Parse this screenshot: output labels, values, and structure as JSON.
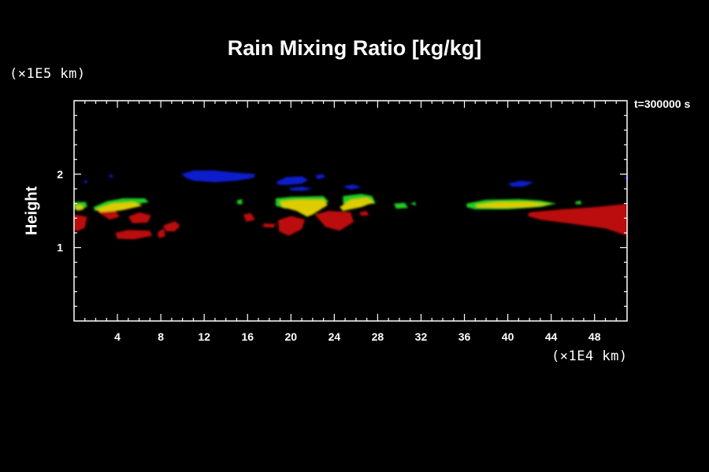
{
  "chart_data": {
    "type": "heatmap",
    "title": "Rain Mixing Ratio [kg/kg]",
    "ylabel": "Height",
    "xunit": "(×1E4 km)",
    "yunit": "(×1E5 km)",
    "time_label": "t=300000 s",
    "xlim": [
      0,
      51
    ],
    "ylim": [
      0,
      3
    ],
    "xticks": [
      4,
      8,
      12,
      16,
      20,
      24,
      28,
      32,
      36,
      40,
      44,
      48
    ],
    "yticks": [
      1,
      2
    ],
    "colors": {
      "low": "#0a1ecc",
      "mid": "#22cc22",
      "high": "#ddcc00",
      "peak": "#bb0a0a"
    },
    "regions": [
      {
        "level": "low",
        "points": [
          [
            9.9,
            2.0
          ],
          [
            11,
            2.05
          ],
          [
            13,
            2.05
          ],
          [
            15,
            2.02
          ],
          [
            16.7,
            2.0
          ],
          [
            16.6,
            1.95
          ],
          [
            15,
            1.91
          ],
          [
            13,
            1.89
          ],
          [
            11,
            1.91
          ],
          [
            10.3,
            1.95
          ]
        ]
      },
      {
        "level": "low",
        "points": [
          [
            18.7,
            1.9
          ],
          [
            19.6,
            1.96
          ],
          [
            21,
            1.97
          ],
          [
            21.6,
            1.92
          ],
          [
            21,
            1.87
          ],
          [
            19.5,
            1.85
          ],
          [
            18.7,
            1.86
          ]
        ]
      },
      {
        "level": "low",
        "points": [
          [
            19.8,
            1.81
          ],
          [
            21,
            1.83
          ],
          [
            22,
            1.8
          ],
          [
            21,
            1.77
          ],
          [
            20,
            1.78
          ]
        ]
      },
      {
        "level": "low",
        "points": [
          [
            22.2,
            1.98
          ],
          [
            22.9,
            2.0
          ],
          [
            23.2,
            1.96
          ],
          [
            22.5,
            1.93
          ]
        ]
      },
      {
        "level": "low",
        "points": [
          [
            24.8,
            1.83
          ],
          [
            25.7,
            1.86
          ],
          [
            26.5,
            1.82
          ],
          [
            25.5,
            1.79
          ]
        ]
      },
      {
        "level": "low",
        "points": [
          [
            40.0,
            1.87
          ],
          [
            41.2,
            1.91
          ],
          [
            42.4,
            1.89
          ],
          [
            41.5,
            1.83
          ],
          [
            40.4,
            1.83
          ]
        ]
      },
      {
        "level": "low",
        "points": [
          [
            0.8,
            1.9
          ],
          [
            1.2,
            1.92
          ],
          [
            1.2,
            1.87
          ]
        ]
      },
      {
        "level": "low",
        "points": [
          [
            3.1,
            1.97
          ],
          [
            3.5,
            2.0
          ],
          [
            3.6,
            1.95
          ]
        ]
      },
      {
        "level": "low",
        "points": [
          [
            50.7,
            1.95
          ],
          [
            51,
            1.97
          ],
          [
            51,
            1.91
          ]
        ]
      },
      {
        "level": "mid",
        "points": [
          [
            0,
            1.62
          ],
          [
            1.1,
            1.62
          ],
          [
            1.2,
            1.55
          ],
          [
            0.3,
            1.51
          ],
          [
            0,
            1.52
          ]
        ]
      },
      {
        "level": "mid",
        "points": [
          [
            1.8,
            1.55
          ],
          [
            3,
            1.63
          ],
          [
            4.5,
            1.67
          ],
          [
            6.5,
            1.67
          ],
          [
            6.9,
            1.62
          ],
          [
            5.5,
            1.58
          ],
          [
            3,
            1.52
          ],
          [
            1.9,
            1.5
          ]
        ]
      },
      {
        "level": "mid",
        "points": [
          [
            15.0,
            1.64
          ],
          [
            15.5,
            1.66
          ],
          [
            15.5,
            1.59
          ],
          [
            15.1,
            1.59
          ]
        ]
      },
      {
        "level": "mid",
        "points": [
          [
            18.6,
            1.67
          ],
          [
            20,
            1.69
          ],
          [
            23,
            1.7
          ],
          [
            23.5,
            1.62
          ],
          [
            21.5,
            1.55
          ],
          [
            19.5,
            1.53
          ],
          [
            18.6,
            1.57
          ]
        ]
      },
      {
        "level": "mid",
        "points": [
          [
            24.8,
            1.7
          ],
          [
            26.5,
            1.73
          ],
          [
            27.5,
            1.7
          ],
          [
            27.8,
            1.6
          ],
          [
            26.3,
            1.58
          ],
          [
            24.8,
            1.6
          ]
        ]
      },
      {
        "level": "mid",
        "points": [
          [
            29.5,
            1.6
          ],
          [
            30.5,
            1.61
          ],
          [
            30.8,
            1.54
          ],
          [
            29.7,
            1.53
          ]
        ]
      },
      {
        "level": "mid",
        "points": [
          [
            31.0,
            1.6
          ],
          [
            31.5,
            1.62
          ],
          [
            31.5,
            1.57
          ]
        ]
      },
      {
        "level": "mid",
        "points": [
          [
            36.2,
            1.6
          ],
          [
            38,
            1.65
          ],
          [
            41,
            1.66
          ],
          [
            43,
            1.64
          ],
          [
            44.5,
            1.6
          ],
          [
            43,
            1.55
          ],
          [
            40,
            1.52
          ],
          [
            37,
            1.52
          ],
          [
            36.2,
            1.55
          ]
        ]
      },
      {
        "level": "mid",
        "points": [
          [
            46.2,
            1.62
          ],
          [
            46.7,
            1.64
          ],
          [
            46.8,
            1.59
          ],
          [
            46.3,
            1.59
          ]
        ]
      },
      {
        "level": "high",
        "points": [
          [
            0.1,
            1.57
          ],
          [
            0.7,
            1.58
          ],
          [
            0.9,
            1.52
          ],
          [
            0.3,
            1.5
          ]
        ]
      },
      {
        "level": "high",
        "points": [
          [
            2.0,
            1.52
          ],
          [
            3.5,
            1.6
          ],
          [
            5.5,
            1.62
          ],
          [
            6.3,
            1.57
          ],
          [
            4.5,
            1.51
          ],
          [
            2.5,
            1.47
          ]
        ]
      },
      {
        "level": "high",
        "points": [
          [
            19,
            1.63
          ],
          [
            20.5,
            1.65
          ],
          [
            23,
            1.65
          ],
          [
            23.4,
            1.58
          ],
          [
            22,
            1.45
          ],
          [
            21.5,
            1.42
          ],
          [
            20.5,
            1.5
          ],
          [
            19.2,
            1.55
          ]
        ]
      },
      {
        "level": "high",
        "points": [
          [
            24.5,
            1.55
          ],
          [
            25.5,
            1.65
          ],
          [
            27,
            1.68
          ],
          [
            27.7,
            1.62
          ],
          [
            26.5,
            1.55
          ],
          [
            24.8,
            1.5
          ]
        ]
      },
      {
        "level": "high",
        "points": [
          [
            37,
            1.58
          ],
          [
            39,
            1.62
          ],
          [
            42,
            1.62
          ],
          [
            44,
            1.59
          ],
          [
            42,
            1.55
          ],
          [
            39,
            1.54
          ],
          [
            37.2,
            1.55
          ]
        ]
      },
      {
        "level": "high",
        "points": [
          [
            50,
            1.52
          ],
          [
            51,
            1.55
          ],
          [
            51,
            1.47
          ],
          [
            50.2,
            1.46
          ]
        ]
      },
      {
        "level": "peak",
        "points": [
          [
            0,
            1.45
          ],
          [
            1.2,
            1.42
          ],
          [
            1.0,
            1.27
          ],
          [
            0.3,
            1.22
          ],
          [
            0,
            1.24
          ]
        ]
      },
      {
        "level": "peak",
        "points": [
          [
            2.2,
            1.48
          ],
          [
            3.8,
            1.5
          ],
          [
            4.2,
            1.42
          ],
          [
            3.3,
            1.38
          ]
        ]
      },
      {
        "level": "peak",
        "points": [
          [
            5.0,
            1.42
          ],
          [
            6.0,
            1.48
          ],
          [
            7.1,
            1.44
          ],
          [
            6.8,
            1.34
          ],
          [
            5.4,
            1.33
          ]
        ]
      },
      {
        "level": "peak",
        "points": [
          [
            3.8,
            1.2
          ],
          [
            5,
            1.24
          ],
          [
            7.0,
            1.23
          ],
          [
            7.2,
            1.16
          ],
          [
            5.5,
            1.11
          ],
          [
            4.0,
            1.12
          ]
        ]
      },
      {
        "level": "peak",
        "points": [
          [
            7.7,
            1.21
          ],
          [
            8.3,
            1.26
          ],
          [
            8.4,
            1.15
          ],
          [
            7.8,
            1.13
          ]
        ]
      },
      {
        "level": "peak",
        "points": [
          [
            8.2,
            1.3
          ],
          [
            9.3,
            1.36
          ],
          [
            9.8,
            1.3
          ],
          [
            9.3,
            1.22
          ],
          [
            8.5,
            1.22
          ]
        ]
      },
      {
        "level": "peak",
        "points": [
          [
            15.6,
            1.45
          ],
          [
            16.3,
            1.47
          ],
          [
            16.7,
            1.38
          ],
          [
            15.9,
            1.35
          ]
        ]
      },
      {
        "level": "peak",
        "points": [
          [
            17.5,
            1.33
          ],
          [
            18.6,
            1.32
          ],
          [
            18.4,
            1.27
          ],
          [
            17.4,
            1.28
          ]
        ]
      },
      {
        "level": "peak",
        "points": [
          [
            18.8,
            1.37
          ],
          [
            20,
            1.43
          ],
          [
            21.3,
            1.38
          ],
          [
            21.0,
            1.25
          ],
          [
            19.8,
            1.16
          ],
          [
            18.9,
            1.22
          ]
        ]
      },
      {
        "level": "peak",
        "points": [
          [
            22.2,
            1.45
          ],
          [
            23.5,
            1.5
          ],
          [
            25.5,
            1.48
          ],
          [
            25.8,
            1.35
          ],
          [
            24.5,
            1.23
          ],
          [
            23.2,
            1.28
          ]
        ]
      },
      {
        "level": "peak",
        "points": [
          [
            26.3,
            1.48
          ],
          [
            27,
            1.5
          ],
          [
            27.2,
            1.44
          ],
          [
            26.5,
            1.43
          ]
        ]
      },
      {
        "level": "peak",
        "points": [
          [
            42,
            1.48
          ],
          [
            45,
            1.52
          ],
          [
            48,
            1.55
          ],
          [
            50,
            1.58
          ],
          [
            51,
            1.6
          ],
          [
            51,
            1.16
          ],
          [
            49,
            1.26
          ],
          [
            46,
            1.32
          ],
          [
            43,
            1.38
          ],
          [
            41.8,
            1.43
          ]
        ]
      }
    ]
  }
}
